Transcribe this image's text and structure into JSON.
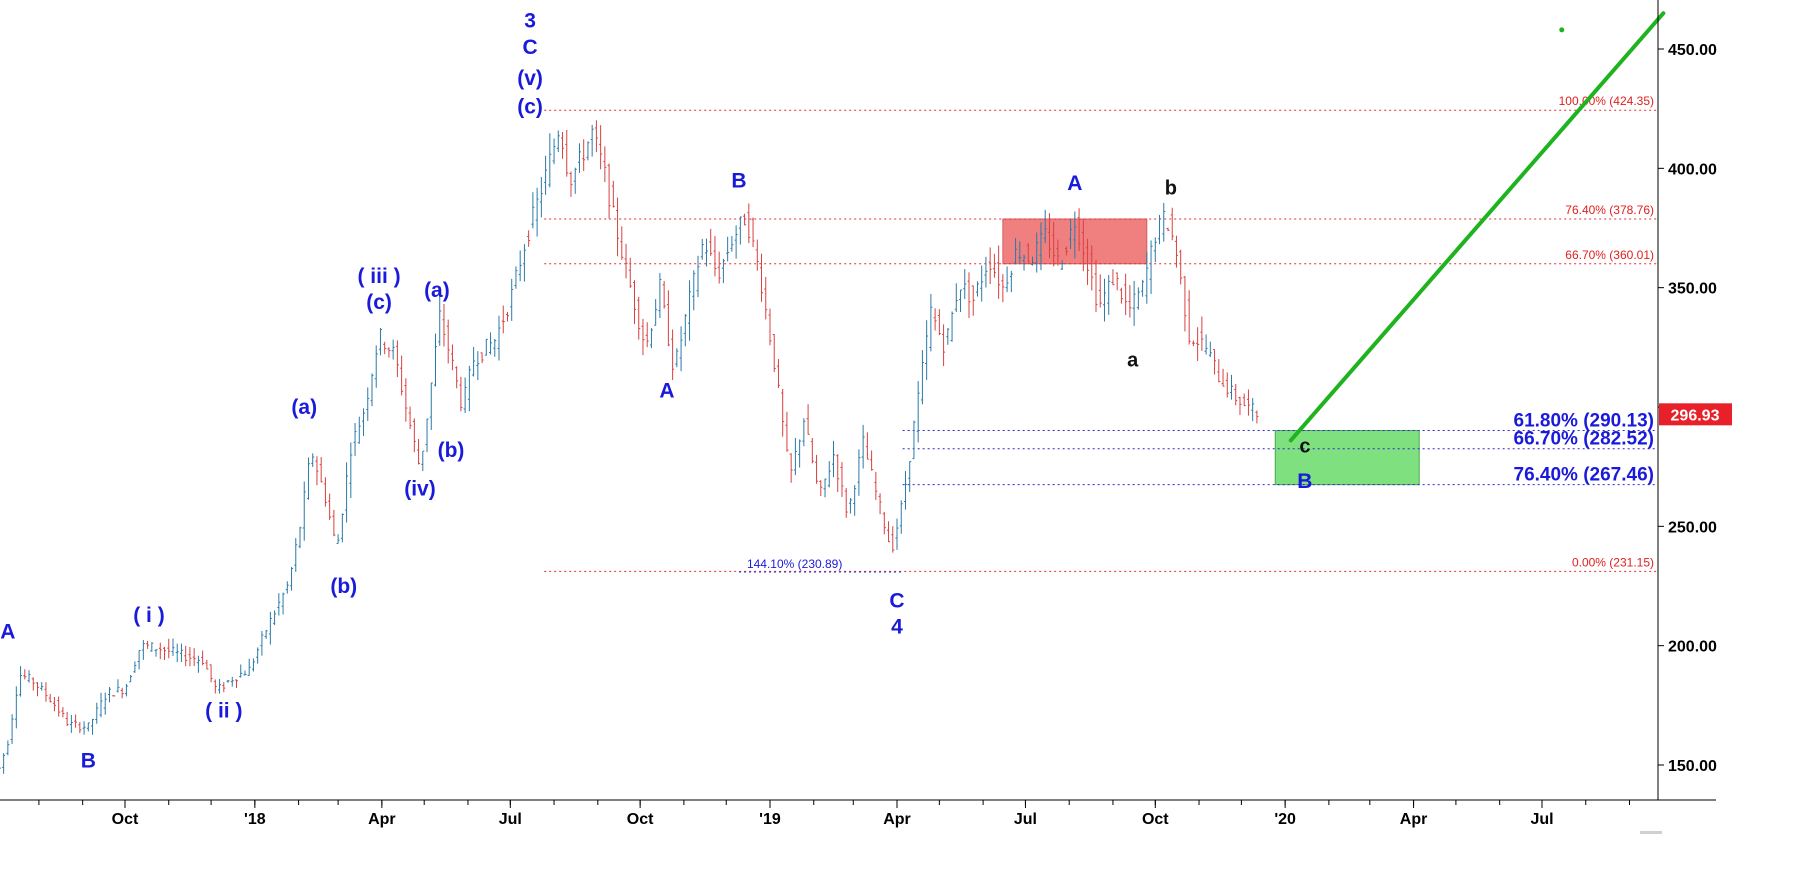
{
  "chart_data": {
    "type": "candlestick",
    "title": "",
    "xlabel": "",
    "ylabel": "",
    "ylim": [
      135,
      468
    ],
    "y_ticks": [
      150,
      200,
      250,
      300,
      350,
      400,
      450
    ],
    "y_tick_labels": [
      "150.00",
      "200.00",
      "250.00",
      "",
      "350.00",
      "400.00",
      "450.00"
    ],
    "x_ticks": [
      {
        "date": "2017-10-01",
        "label": "Oct"
      },
      {
        "date": "2018-01-01",
        "label": "'18"
      },
      {
        "date": "2018-04-01",
        "label": "Apr"
      },
      {
        "date": "2018-07-01",
        "label": "Jul"
      },
      {
        "date": "2018-10-01",
        "label": "Oct"
      },
      {
        "date": "2019-01-01",
        "label": "'19"
      },
      {
        "date": "2019-04-01",
        "label": "Apr"
      },
      {
        "date": "2019-07-01",
        "label": "Jul"
      },
      {
        "date": "2019-10-01",
        "label": "Oct"
      },
      {
        "date": "2020-01-01",
        "label": "'20"
      },
      {
        "date": "2020-04-01",
        "label": "Apr"
      },
      {
        "date": "2020-07-01",
        "label": "Jul"
      }
    ],
    "grid": false,
    "current_price": {
      "value": 296.93,
      "label": "296.93",
      "color": "#e8202a"
    },
    "price_path": [
      [
        "2017-07-01",
        143
      ],
      [
        "2017-07-10",
        160
      ],
      [
        "2017-07-18",
        188
      ],
      [
        "2017-07-28",
        185
      ],
      [
        "2017-08-10",
        177
      ],
      [
        "2017-08-22",
        167
      ],
      [
        "2017-09-05",
        166
      ],
      [
        "2017-09-18",
        180
      ],
      [
        "2017-10-01",
        182
      ],
      [
        "2017-10-12",
        200
      ],
      [
        "2017-10-25",
        199
      ],
      [
        "2017-11-10",
        196
      ],
      [
        "2017-11-25",
        194
      ],
      [
        "2017-12-05",
        181
      ],
      [
        "2017-12-15",
        186
      ],
      [
        "2017-12-28",
        190
      ],
      [
        "2018-01-10",
        208
      ],
      [
        "2018-01-25",
        226
      ],
      [
        "2018-02-02",
        250
      ],
      [
        "2018-02-10",
        282
      ],
      [
        "2018-02-20",
        262
      ],
      [
        "2018-02-28",
        240
      ],
      [
        "2018-03-10",
        283
      ],
      [
        "2018-03-20",
        300
      ],
      [
        "2018-03-30",
        330
      ],
      [
        "2018-04-10",
        322
      ],
      [
        "2018-04-18",
        300
      ],
      [
        "2018-04-28",
        274
      ],
      [
        "2018-05-05",
        305
      ],
      [
        "2018-05-12",
        338
      ],
      [
        "2018-05-20",
        320
      ],
      [
        "2018-05-28",
        300
      ],
      [
        "2018-06-05",
        320
      ],
      [
        "2018-06-20",
        328
      ],
      [
        "2018-07-01",
        345
      ],
      [
        "2018-07-12",
        370
      ],
      [
        "2018-07-25",
        395
      ],
      [
        "2018-08-05",
        418
      ],
      [
        "2018-08-12",
        395
      ],
      [
        "2018-08-20",
        404
      ],
      [
        "2018-08-28",
        415
      ],
      [
        "2018-09-05",
        400
      ],
      [
        "2018-09-12",
        380
      ],
      [
        "2018-09-22",
        355
      ],
      [
        "2018-10-05",
        325
      ],
      [
        "2018-10-15",
        350
      ],
      [
        "2018-10-25",
        315
      ],
      [
        "2018-11-05",
        345
      ],
      [
        "2018-11-15",
        370
      ],
      [
        "2018-11-25",
        355
      ],
      [
        "2018-12-05",
        370
      ],
      [
        "2018-12-15",
        380
      ],
      [
        "2018-12-25",
        355
      ],
      [
        "2019-01-05",
        315
      ],
      [
        "2019-01-15",
        270
      ],
      [
        "2019-01-25",
        295
      ],
      [
        "2019-02-05",
        262
      ],
      [
        "2019-02-15",
        280
      ],
      [
        "2019-02-25",
        255
      ],
      [
        "2019-03-08",
        285
      ],
      [
        "2019-03-18",
        262
      ],
      [
        "2019-03-28",
        240
      ],
      [
        "2019-04-05",
        260
      ],
      [
        "2019-04-15",
        300
      ],
      [
        "2019-04-25",
        340
      ],
      [
        "2019-05-05",
        325
      ],
      [
        "2019-05-15",
        352
      ],
      [
        "2019-05-25",
        345
      ],
      [
        "2019-06-05",
        362
      ],
      [
        "2019-06-15",
        350
      ],
      [
        "2019-06-25",
        366
      ],
      [
        "2019-07-05",
        362
      ],
      [
        "2019-07-15",
        372
      ],
      [
        "2019-07-25",
        360
      ],
      [
        "2019-08-05",
        378
      ],
      [
        "2019-08-12",
        365
      ],
      [
        "2019-08-22",
        342
      ],
      [
        "2019-09-02",
        355
      ],
      [
        "2019-09-12",
        340
      ],
      [
        "2019-09-22",
        350
      ],
      [
        "2019-10-01",
        372
      ],
      [
        "2019-10-08",
        380
      ],
      [
        "2019-10-15",
        368
      ],
      [
        "2019-10-25",
        330
      ],
      [
        "2019-11-05",
        326
      ],
      [
        "2019-11-15",
        313
      ],
      [
        "2019-11-25",
        305
      ],
      [
        "2019-12-05",
        300
      ],
      [
        "2019-12-12",
        297
      ]
    ],
    "wave_labels": [
      {
        "text": "A",
        "date": "2017-07-10",
        "price": 203,
        "color": "blue"
      },
      {
        "text": "B",
        "date": "2017-09-05",
        "price": 149,
        "color": "blue"
      },
      {
        "text": "( i )",
        "date": "2017-10-18",
        "price": 210,
        "color": "blue"
      },
      {
        "text": "( ii )",
        "date": "2017-12-10",
        "price": 170,
        "color": "blue"
      },
      {
        "text": "(a)",
        "date": "2018-02-05",
        "price": 297,
        "color": "blue"
      },
      {
        "text": "(b)",
        "date": "2018-03-05",
        "price": 222,
        "color": "blue"
      },
      {
        "text": "( iii )",
        "date": "2018-03-30",
        "price": 352,
        "color": "blue"
      },
      {
        "text": "(c)",
        "date": "2018-03-30",
        "price": 341,
        "color": "blue"
      },
      {
        "text": "(a)",
        "date": "2018-05-10",
        "price": 346,
        "color": "blue"
      },
      {
        "text": "(iv)",
        "date": "2018-04-28",
        "price": 263,
        "color": "blue"
      },
      {
        "text": "(b)",
        "date": "2018-05-20",
        "price": 279,
        "color": "blue"
      },
      {
        "text": "3",
        "date": "2018-07-15",
        "price": 459,
        "color": "blue"
      },
      {
        "text": "C",
        "date": "2018-07-15",
        "price": 448,
        "color": "blue"
      },
      {
        "text": "(v)",
        "date": "2018-07-15",
        "price": 435,
        "color": "blue"
      },
      {
        "text": "(c)",
        "date": "2018-07-15",
        "price": 423,
        "color": "blue"
      },
      {
        "text": "A",
        "date": "2018-10-20",
        "price": 304,
        "color": "blue"
      },
      {
        "text": "B",
        "date": "2018-12-10",
        "price": 392,
        "color": "blue"
      },
      {
        "text": "C",
        "date": "2019-04-01",
        "price": 216,
        "color": "blue"
      },
      {
        "text": "4",
        "date": "2019-04-01",
        "price": 205,
        "color": "blue"
      },
      {
        "text": "A",
        "date": "2019-08-05",
        "price": 391,
        "color": "blue"
      },
      {
        "text": "a",
        "date": "2019-09-15",
        "price": 317,
        "color": "black"
      },
      {
        "text": "b",
        "date": "2019-10-12",
        "price": 389,
        "color": "black"
      },
      {
        "text": "c",
        "date": "2020-01-15",
        "price": 281,
        "color": "black"
      },
      {
        "text": "B",
        "date": "2020-01-15",
        "price": 266,
        "color": "blue"
      }
    ],
    "fib_levels": [
      {
        "label": "100.00% (424.35)",
        "value": 424.35,
        "color": "red",
        "start": "2018-07-25"
      },
      {
        "label": "76.40% (378.76)",
        "value": 378.76,
        "color": "red",
        "start": "2018-07-25"
      },
      {
        "label": "66.70% (360.01)",
        "value": 360.01,
        "color": "red",
        "start": "2018-07-25"
      },
      {
        "label": "0.00% (231.15)",
        "value": 231.15,
        "color": "red",
        "start": "2018-07-25"
      },
      {
        "label": "61.80% (290.13)",
        "value": 290.13,
        "color": "blue",
        "start": "2019-04-05"
      },
      {
        "label": "66.70% (282.52)",
        "value": 282.52,
        "color": "blue",
        "start": "2019-04-05"
      },
      {
        "label": "76.40% (267.46)",
        "value": 267.46,
        "color": "blue",
        "start": "2019-04-05"
      },
      {
        "label": "144.10% (230.89)",
        "value": 230.89,
        "color": "blue",
        "start": "2018-12-10",
        "end": "2019-04-05"
      }
    ],
    "zones": [
      {
        "name": "resistance",
        "color": "#f08080",
        "from_date": "2019-06-15",
        "to_date": "2019-09-25",
        "low": 360.01,
        "high": 378.76
      },
      {
        "name": "support",
        "color": "#7ee07e",
        "from_date": "2019-12-25",
        "to_date": "2020-04-05",
        "low": 267.46,
        "high": 290.13
      }
    ],
    "projection": {
      "color": "#1fb31f",
      "from": [
        "2020-01-05",
        286
      ],
      "to": [
        "2020-09-25",
        465
      ],
      "dot": [
        "2020-07-15",
        458
      ]
    }
  }
}
